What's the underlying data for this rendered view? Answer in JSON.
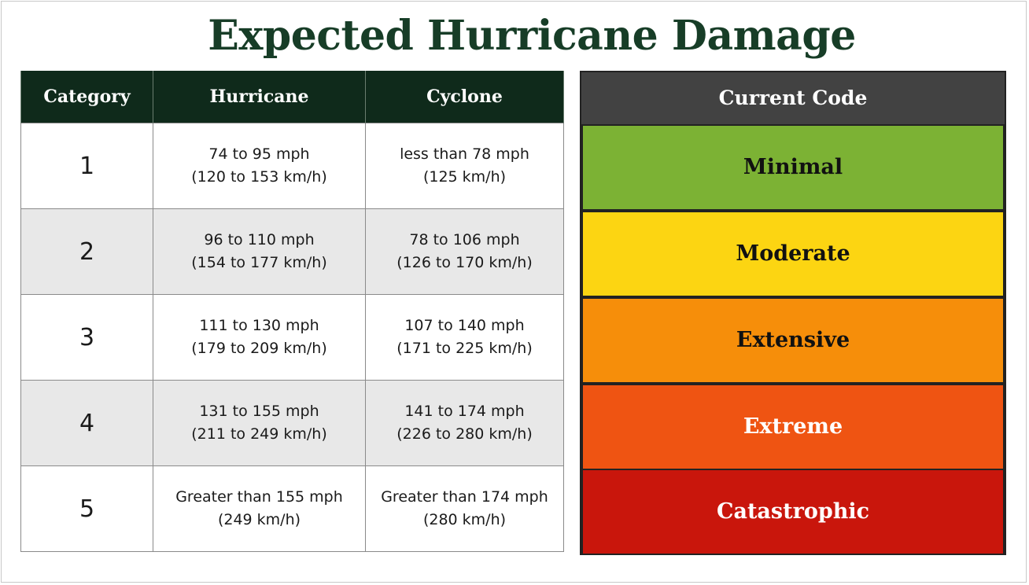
{
  "title": "Expected Hurricane Damage",
  "table": {
    "headers": [
      "Category",
      "Hurricane",
      "Cyclone"
    ],
    "rows": [
      {
        "category": "1",
        "hurricane": [
          "74 to 95 mph",
          "(120 to 153 km/h)"
        ],
        "cyclone": [
          "less than 78 mph",
          "(125 km/h)"
        ]
      },
      {
        "category": "2",
        "hurricane": [
          "96 to 110 mph",
          "(154 to 177 km/h)"
        ],
        "cyclone": [
          "78 to 106 mph",
          "(126 to 170 km/h)"
        ]
      },
      {
        "category": "3",
        "hurricane": [
          "111 to 130 mph",
          "(179 to 209 km/h)"
        ],
        "cyclone": [
          "107 to 140 mph",
          "(171 to 225 km/h)"
        ]
      },
      {
        "category": "4",
        "hurricane": [
          "131 to 155 mph",
          "(211 to 249 km/h)"
        ],
        "cyclone": [
          "141 to 174 mph",
          "(226 to 280 km/h)"
        ]
      },
      {
        "category": "5",
        "hurricane": [
          "Greater than 155 mph",
          "(249 km/h)"
        ],
        "cyclone": [
          "Greater than 174 mph",
          "(280 km/h)"
        ]
      }
    ]
  },
  "code_panel": {
    "header": "Current Code",
    "levels": [
      {
        "label": "Minimal",
        "color": "#7cb234"
      },
      {
        "label": "Moderate",
        "color": "#fcd512"
      },
      {
        "label": "Extensive",
        "color": "#f68e0a"
      },
      {
        "label": "Extreme",
        "color": "#ef5412"
      },
      {
        "label": "Catastrophic",
        "color": "#c9160c"
      }
    ]
  },
  "colors": {
    "title": "#173d27",
    "table_header_bg": "#0f2a1b",
    "code_header_bg": "#424242"
  }
}
